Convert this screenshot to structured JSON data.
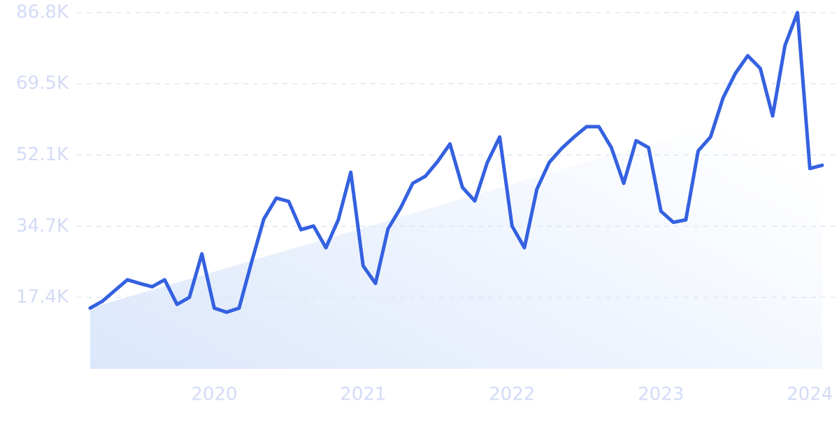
{
  "chart_data": {
    "type": "line",
    "x": [
      2019.167,
      2019.25,
      2019.333,
      2019.417,
      2019.5,
      2019.583,
      2019.667,
      2019.75,
      2019.833,
      2019.917,
      2020,
      2020.083,
      2020.167,
      2020.25,
      2020.333,
      2020.417,
      2020.5,
      2020.583,
      2020.667,
      2020.75,
      2020.833,
      2020.917,
      2021,
      2021.083,
      2021.167,
      2021.25,
      2021.333,
      2021.417,
      2021.5,
      2021.583,
      2021.667,
      2021.75,
      2021.833,
      2021.917,
      2022,
      2022.083,
      2022.167,
      2022.25,
      2022.333,
      2022.417,
      2022.5,
      2022.583,
      2022.667,
      2022.75,
      2022.833,
      2022.917,
      2023,
      2023.083,
      2023.167,
      2023.25,
      2023.333,
      2023.417,
      2023.5,
      2023.583,
      2023.667,
      2023.75,
      2023.833,
      2023.917,
      2024,
      2024.083
    ],
    "series": [
      {
        "color": "#3461e0",
        "values": [
          14800,
          16500,
          19100,
          21700,
          20800,
          20000,
          21700,
          15700,
          17400,
          28000,
          14800,
          13800,
          14800,
          25900,
          36500,
          41600,
          40800,
          33900,
          34800,
          29500,
          36300,
          47900,
          25100,
          20800,
          34100,
          39100,
          45200,
          46900,
          50500,
          54800,
          44200,
          40900,
          50200,
          56500,
          34800,
          29500,
          43800,
          50300,
          53700,
          56500,
          59000,
          59000,
          53900,
          45200,
          55600,
          53900,
          38400,
          35700,
          36300,
          53100,
          56500,
          66000,
          72000,
          76300,
          73200,
          61600,
          78800,
          86800,
          48800,
          49600
        ]
      }
    ],
    "trend": [
      14800,
      67200
    ],
    "trend_color": "#dbe7fb",
    "xlim": [
      2019.167,
      2024.083
    ],
    "xticks": [
      2020,
      2021,
      2022,
      2023,
      2024
    ],
    "ylim": [
      0,
      86800
    ],
    "yticks": [
      {
        "value": 17400,
        "label": "17.4K"
      },
      {
        "value": 34700,
        "label": "34.7K"
      },
      {
        "value": 52100,
        "label": "52.1K"
      },
      {
        "value": 69500,
        "label": "69.5K"
      },
      {
        "value": 86800,
        "label": "86.8K"
      }
    ],
    "grid": true
  }
}
